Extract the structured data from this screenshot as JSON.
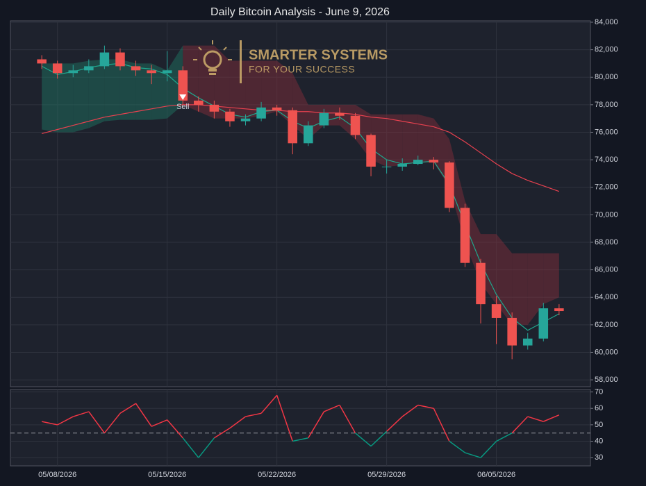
{
  "branding": {
    "name": "SMARTER SYSTEMS",
    "tagline": "FOR YOUR SUCCESS"
  },
  "chart_data": [
    {
      "type": "candlestick",
      "title": "Daily Bitcoin Analysis - June 9, 2026",
      "x": [
        "2026-05-07",
        "2026-05-08",
        "2026-05-09",
        "2026-05-10",
        "2026-05-11",
        "2026-05-12",
        "2026-05-13",
        "2026-05-14",
        "2026-05-15",
        "2026-05-16",
        "2026-05-17",
        "2026-05-18",
        "2026-05-19",
        "2026-05-20",
        "2026-05-21",
        "2026-05-22",
        "2026-05-23",
        "2026-05-24",
        "2026-05-25",
        "2026-05-26",
        "2026-05-27",
        "2026-05-28",
        "2026-05-29",
        "2026-05-30",
        "2026-05-31",
        "2026-06-01",
        "2026-06-02",
        "2026-06-03",
        "2026-06-04",
        "2026-06-05",
        "2026-06-06",
        "2026-06-07",
        "2026-06-08",
        "2026-06-09"
      ],
      "open": [
        81300,
        81000,
        80300,
        80500,
        80800,
        81800,
        80800,
        80500,
        80300,
        80500,
        78300,
        78000,
        77500,
        76800,
        77000,
        77800,
        77600,
        75200,
        76500,
        77400,
        77200,
        75800,
        73500,
        73500,
        73700,
        74000,
        73800,
        70500,
        66500,
        63500,
        62500,
        60500,
        61000,
        63200
      ],
      "high": [
        81600,
        81200,
        80900,
        81300,
        82300,
        82100,
        81200,
        80900,
        81900,
        80800,
        78600,
        78300,
        77700,
        77300,
        78200,
        78000,
        77800,
        76800,
        77700,
        77800,
        77400,
        75900,
        74000,
        74100,
        74300,
        74200,
        73900,
        70800,
        66800,
        64100,
        62900,
        61400,
        63600,
        63500
      ],
      "low": [
        80600,
        79900,
        80000,
        80300,
        80600,
        80500,
        80100,
        79500,
        79700,
        77900,
        77500,
        77000,
        76400,
        76500,
        76800,
        77200,
        74400,
        75000,
        76300,
        76900,
        75500,
        72800,
        73000,
        73200,
        73600,
        73300,
        70200,
        66200,
        62100,
        60600,
        59500,
        60200,
        60800,
        62700
      ],
      "close": [
        81000,
        80300,
        80500,
        80800,
        81800,
        80800,
        80500,
        80300,
        80500,
        78300,
        78000,
        77500,
        76800,
        77000,
        77800,
        77600,
        75200,
        76500,
        77400,
        77200,
        75800,
        73500,
        73500,
        73700,
        74000,
        73800,
        70500,
        66500,
        63500,
        62500,
        60500,
        61000,
        63200,
        63000
      ],
      "up_color": "#26a69a",
      "down_color": "#ef5350",
      "cloud": {
        "upper": [
          81000,
          81000,
          81000,
          81200,
          81300,
          81300,
          81000,
          81000,
          80500,
          82300,
          82300,
          82300,
          81200,
          81200,
          81200,
          81200,
          80300,
          78000,
          78000,
          78000,
          78000,
          77300,
          77300,
          77300,
          77300,
          77000,
          75500,
          71000,
          68600,
          68600,
          67200,
          67200,
          67200,
          67200
        ],
        "lower": [
          76200,
          76000,
          76000,
          76300,
          76800,
          76900,
          76900,
          76900,
          77000,
          78000,
          77500,
          77000,
          77000,
          77000,
          77200,
          77500,
          76500,
          75500,
          76500,
          76500,
          75500,
          74000,
          73500,
          73600,
          73800,
          73800,
          72000,
          68000,
          65000,
          63500,
          62000,
          62000,
          63500,
          64000
        ],
        "colors": [
          "#1e7a66",
          "#1e7a66",
          "#1e7a66",
          "#1e7a66",
          "#1e7a66",
          "#1e7a66",
          "#1e7a66",
          "#1e7a66",
          "#1e7a66",
          "#8a2f3c",
          "#8a2f3c",
          "#8a2f3c",
          "#8a2f3c",
          "#8a2f3c",
          "#8a2f3c",
          "#8a2f3c",
          "#8a2f3c",
          "#8a2f3c",
          "#8a2f3c",
          "#8a2f3c",
          "#8a2f3c",
          "#8a2f3c",
          "#8a2f3c",
          "#8a2f3c",
          "#8a2f3c",
          "#8a2f3c",
          "#8a2f3c",
          "#8a2f3c",
          "#8a2f3c",
          "#8a2f3c",
          "#8a2f3c",
          "#8a2f3c",
          "#8a2f3c",
          "#8a2f3c"
        ]
      },
      "lines": [
        {
          "color": "#1fa88e",
          "values": [
            80800,
            80200,
            80400,
            80700,
            80900,
            81000,
            80700,
            80600,
            80200,
            79200,
            78500,
            77900,
            77300,
            77100,
            77500,
            77600,
            76800,
            76300,
            76800,
            77100,
            76300,
            74800,
            74000,
            73700,
            73800,
            73900,
            72200,
            69300,
            66500,
            64200,
            62500,
            61600,
            62200,
            62800
          ]
        },
        {
          "color": "#e8414f",
          "values": [
            75900,
            76200,
            76500,
            76800,
            77100,
            77300,
            77500,
            77700,
            77900,
            78000,
            78000,
            77900,
            77800,
            77700,
            77600,
            77600,
            77500,
            77500,
            77400,
            77400,
            77300,
            77100,
            77000,
            76800,
            76600,
            76400,
            76000,
            75300,
            74500,
            73700,
            73000,
            72500,
            72100,
            71700
          ]
        }
      ],
      "annotations": [
        {
          "x": "2026-05-16",
          "y": 78500,
          "label": "Sell"
        }
      ],
      "xlim": [
        "2026-05-05",
        "2026-06-11"
      ],
      "xticks": [
        {
          "value": "2026-05-08",
          "label": "05/08/2026"
        },
        {
          "value": "2026-05-15",
          "label": "05/15/2026"
        },
        {
          "value": "2026-05-22",
          "label": "05/22/2026"
        },
        {
          "value": "2026-05-29",
          "label": "05/29/2026"
        },
        {
          "value": "2026-06-05",
          "label": "06/05/2026"
        }
      ],
      "ylim": [
        57500,
        84100
      ],
      "yticks": [
        {
          "value": 58000,
          "label": "58,000"
        },
        {
          "value": 60000,
          "label": "60,000"
        },
        {
          "value": 62000,
          "label": "62,000"
        },
        {
          "value": 64000,
          "label": "64,000"
        },
        {
          "value": 66000,
          "label": "66,000"
        },
        {
          "value": 68000,
          "label": "68,000"
        },
        {
          "value": 70000,
          "label": "70,000"
        },
        {
          "value": 72000,
          "label": "72,000"
        },
        {
          "value": 74000,
          "label": "74,000"
        },
        {
          "value": 76000,
          "label": "76,000"
        },
        {
          "value": 78000,
          "label": "78,000"
        },
        {
          "value": 80000,
          "label": "80,000"
        },
        {
          "value": 82000,
          "label": "82,000"
        },
        {
          "value": 84000,
          "label": "84,000"
        }
      ],
      "grid": true
    },
    {
      "type": "line",
      "x": [
        "2026-05-07",
        "2026-05-08",
        "2026-05-09",
        "2026-05-10",
        "2026-05-11",
        "2026-05-12",
        "2026-05-13",
        "2026-05-14",
        "2026-05-15",
        "2026-05-16",
        "2026-05-17",
        "2026-05-18",
        "2026-05-19",
        "2026-05-20",
        "2026-05-21",
        "2026-05-22",
        "2026-05-23",
        "2026-05-24",
        "2026-05-25",
        "2026-05-26",
        "2026-05-27",
        "2026-05-28",
        "2026-05-29",
        "2026-05-30",
        "2026-05-31",
        "2026-06-01",
        "2026-06-02",
        "2026-06-03",
        "2026-06-04",
        "2026-06-05",
        "2026-06-06",
        "2026-06-07",
        "2026-06-08",
        "2026-06-09"
      ],
      "values": [
        52,
        50,
        55,
        58,
        45,
        57,
        63,
        49,
        53,
        42,
        30,
        42,
        48,
        55,
        57,
        68,
        40,
        42,
        58,
        62,
        45,
        37,
        46,
        55,
        62,
        60,
        40,
        33,
        30,
        40,
        45,
        55,
        52,
        56
      ],
      "color_above": "#f23645",
      "color_below": "#089981",
      "threshold": 45,
      "xlim": [
        "2026-05-05",
        "2026-06-11"
      ],
      "xticks": [
        {
          "value": "2026-05-08",
          "label": "05/08/2026"
        },
        {
          "value": "2026-05-15",
          "label": "05/15/2026"
        },
        {
          "value": "2026-05-22",
          "label": "05/22/2026"
        },
        {
          "value": "2026-05-29",
          "label": "05/29/2026"
        },
        {
          "value": "2026-06-05",
          "label": "06/05/2026"
        }
      ],
      "ylim": [
        25,
        71.5
      ],
      "yticks": [
        30,
        40,
        50,
        60,
        70
      ],
      "grid": true
    }
  ]
}
